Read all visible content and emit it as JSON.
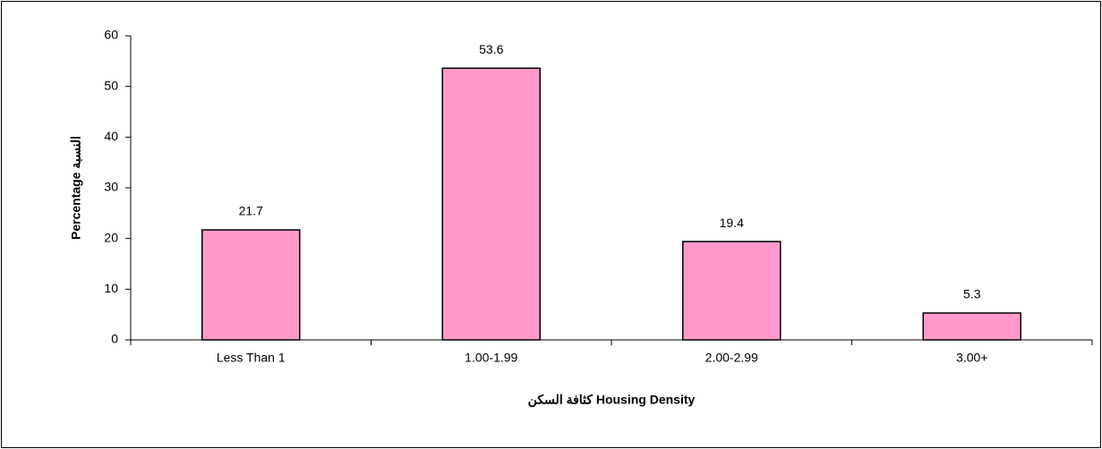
{
  "chart_data": {
    "type": "bar",
    "xlabel": "كثافة السكن Housing Density",
    "ylabel": "Percentage النسبة",
    "categories": [
      "Less Than 1",
      "1.00-1.99",
      "2.00-2.99",
      "3.00+"
    ],
    "values": [
      21.7,
      53.6,
      19.4,
      5.3
    ],
    "color": "#ff99cc",
    "ylim": [
      0,
      60
    ],
    "yticks": [
      0,
      10,
      20,
      30,
      40,
      50,
      60
    ],
    "grid": false
  }
}
